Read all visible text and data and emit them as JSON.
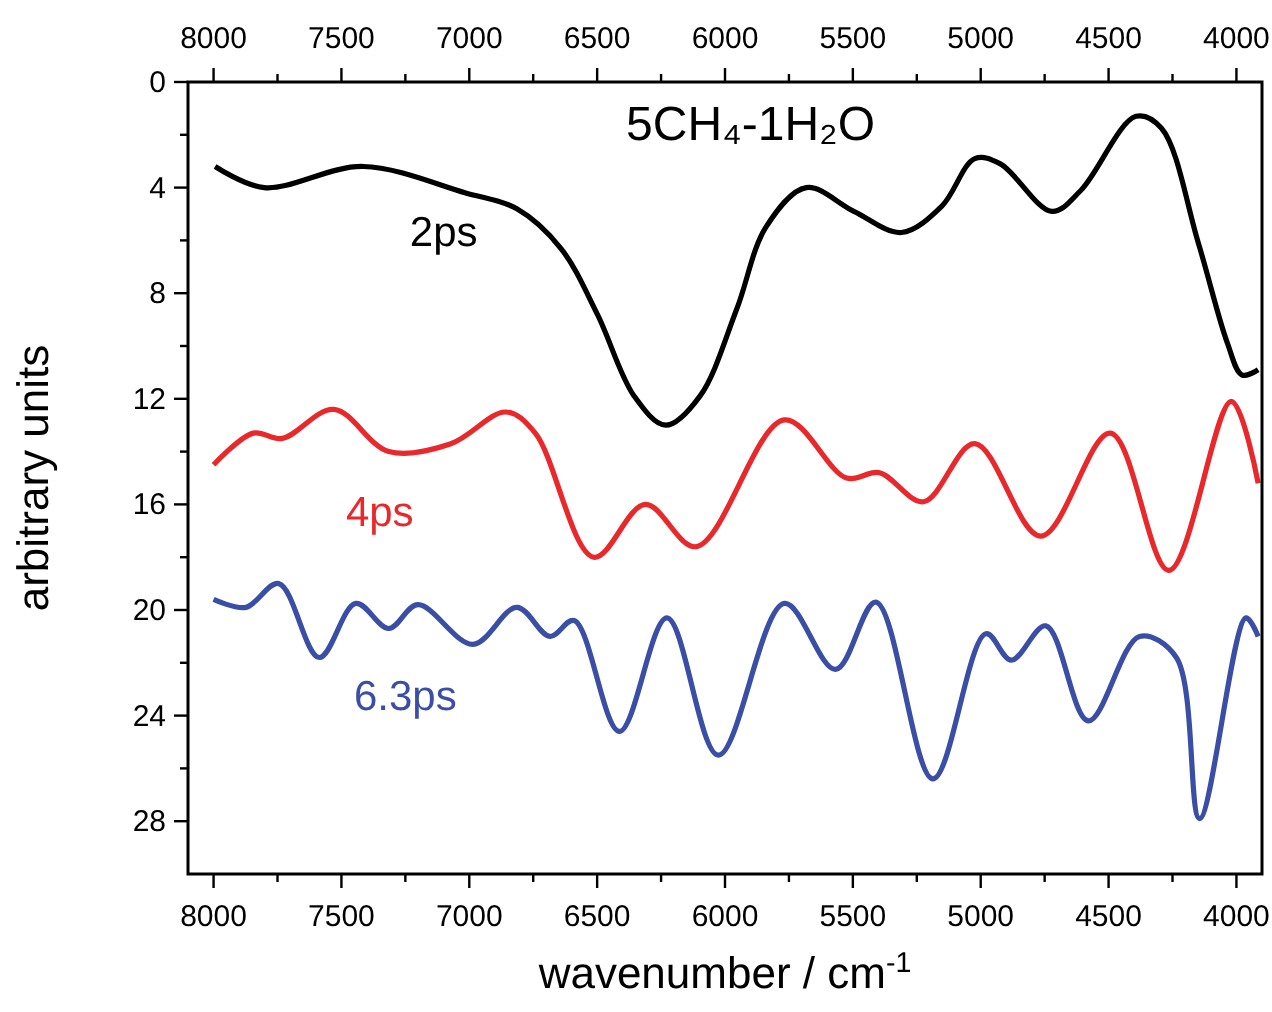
{
  "chart_data": {
    "type": "line",
    "title": "5CH₄-1H₂O",
    "xlabel": "wavenumber / cm$^{-1}$",
    "ylabel": "arbitrary units",
    "xlim": [
      8100,
      3900
    ],
    "ylim": [
      30,
      0
    ],
    "xticks": [
      8000,
      {
        "value": 7750,
        "label": null
      },
      7500,
      {
        "value": 7250,
        "label": null
      },
      7000,
      {
        "value": 6750,
        "label": null
      },
      6500,
      {
        "value": 6250,
        "label": null
      },
      6000,
      {
        "value": 5750,
        "label": null
      },
      5500,
      {
        "value": 5250,
        "label": null
      },
      5000,
      {
        "value": 4750,
        "label": null
      },
      4500,
      {
        "value": 4250,
        "label": null
      },
      4000
    ],
    "x2lim": [
      8100,
      3900
    ],
    "x2ticks": [
      8000,
      {
        "value": 7750,
        "label": null
      },
      7500,
      {
        "value": 7250,
        "label": null
      },
      7000,
      {
        "value": 6750,
        "label": null
      },
      6500,
      {
        "value": 6250,
        "label": null
      },
      6000,
      {
        "value": 5750,
        "label": null
      },
      5500,
      {
        "value": 5250,
        "label": null
      },
      5000,
      {
        "value": 4750,
        "label": null
      },
      4500,
      {
        "value": 4250,
        "label": null
      },
      4000
    ],
    "yticks": [
      0,
      {
        "value": 2,
        "label": null
      },
      4,
      {
        "value": 6,
        "label": null
      },
      8,
      {
        "value": 10,
        "label": null
      },
      12,
      {
        "value": 14,
        "label": null
      },
      16,
      {
        "value": 18,
        "label": null
      },
      20,
      {
        "value": 22,
        "label": null
      },
      24,
      {
        "value": 26,
        "label": null
      },
      28
    ],
    "grid": false,
    "marker": "none",
    "line_style": "solid",
    "series": [
      {
        "name": "2ps",
        "color": "#000000",
        "x": [
          7994,
          7802,
          7415,
          7014,
          6814,
          6642,
          6499,
          6355,
          6232,
          6098,
          5954,
          5840,
          5682,
          5496,
          5310,
          5152,
          5023,
          4923,
          4722,
          4608,
          4393,
          4293,
          4149,
          4035,
          3978,
          3915
        ],
        "values": [
          3.2,
          4.0,
          3.2,
          4.2,
          4.8,
          6.3,
          8.8,
          11.9,
          13.0,
          11.9,
          8.6,
          5.5,
          4.0,
          4.9,
          5.7,
          4.7,
          2.9,
          3.1,
          4.9,
          4.1,
          1.3,
          1.75,
          6.1,
          9.9,
          11.1,
          10.9
        ]
      },
      {
        "name": "4ps",
        "color": "#e8282b",
        "x": [
          8000,
          7845,
          7731,
          7530,
          7315,
          7072,
          6857,
          6742,
          6513,
          6312,
          6112,
          5768,
          5525,
          5396,
          5224,
          5023,
          4765,
          4493,
          4264,
          4020,
          3915
        ],
        "values": [
          14.5,
          13.3,
          13.5,
          12.4,
          14.0,
          13.7,
          12.5,
          13.3,
          18.0,
          16.0,
          17.6,
          12.8,
          15.0,
          14.8,
          15.9,
          13.7,
          17.2,
          13.3,
          18.5,
          12.1,
          15.2
        ]
      },
      {
        "name": "6.3ps",
        "color": "#3a4ea6",
        "x": [
          8000,
          7874,
          7745,
          7587,
          7444,
          7315,
          7201,
          6986,
          6814,
          6685,
          6590,
          6413,
          6227,
          6026,
          5768,
          5568,
          5410,
          5187,
          4980,
          4880,
          4745,
          4579,
          4379,
          4235,
          4144,
          3963,
          3915
        ],
        "values": [
          19.6,
          19.9,
          19.0,
          21.8,
          19.75,
          20.7,
          19.8,
          21.3,
          19.9,
          21.0,
          20.4,
          24.6,
          20.3,
          25.5,
          19.75,
          22.25,
          19.7,
          26.4,
          20.9,
          21.9,
          20.6,
          24.2,
          21.0,
          21.8,
          27.9,
          20.3,
          21.0
        ]
      }
    ]
  }
}
